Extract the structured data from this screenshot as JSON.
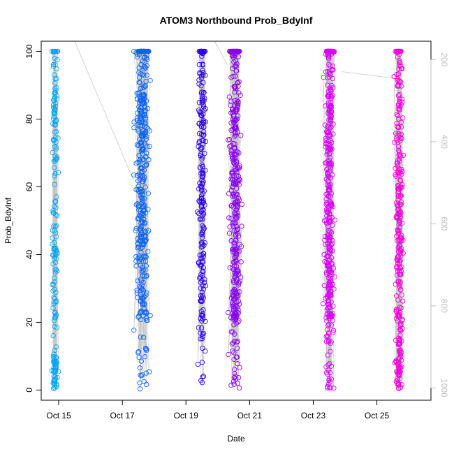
{
  "chart_data": {
    "type": "scatter",
    "title": "ATOM3 Northbound Prob_BdyInf",
    "xlabel": "Date",
    "ylabel": "Prob_BdyInf",
    "x_ticks": [
      "Oct 15",
      "Oct 17",
      "Oct 19",
      "Oct 21",
      "Oct 23",
      "Oct 25"
    ],
    "x_tick_days": [
      15,
      17,
      19,
      21,
      23,
      25
    ],
    "xlim_days": [
      14.45,
      26.7
    ],
    "ylim": [
      -3,
      103
    ],
    "y_ticks": [
      0,
      20,
      40,
      60,
      80,
      100
    ],
    "y2_ticks": [
      200,
      400,
      600,
      800,
      1000
    ],
    "y2lim": [
      1030,
      155
    ],
    "grid": false,
    "legend": "none",
    "series": [
      {
        "center_day": 14.88,
        "spread": 0.07,
        "count": 190,
        "color": "#00a5f5"
      },
      {
        "center_day": 17.62,
        "spread": 0.16,
        "count": 420,
        "color": "#0a64f2"
      },
      {
        "center_day": 19.5,
        "spread": 0.09,
        "count": 230,
        "color": "#2a00ef"
      },
      {
        "center_day": 20.55,
        "spread": 0.14,
        "count": 380,
        "color": "#8a00f0"
      },
      {
        "center_day": 23.5,
        "spread": 0.12,
        "count": 400,
        "color": "#d600f4"
      },
      {
        "center_day": 25.7,
        "spread": 0.1,
        "count": 320,
        "color": "#f000dc"
      }
    ]
  }
}
